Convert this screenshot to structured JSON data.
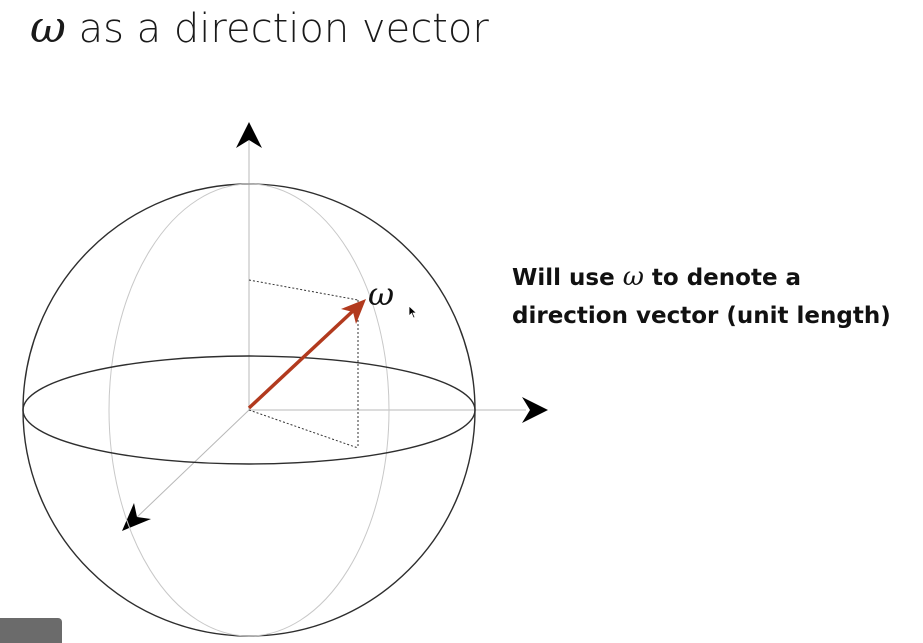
{
  "title": {
    "symbol": "ω",
    "text": " as a direction vector"
  },
  "caption": {
    "line1_pre": "Will use ",
    "symbol": "ω",
    "line1_post": " to denote a",
    "line2": "direction vector (unit length)"
  },
  "diagram": {
    "vector_label": "ω",
    "vector_color": "#b23a1e"
  }
}
